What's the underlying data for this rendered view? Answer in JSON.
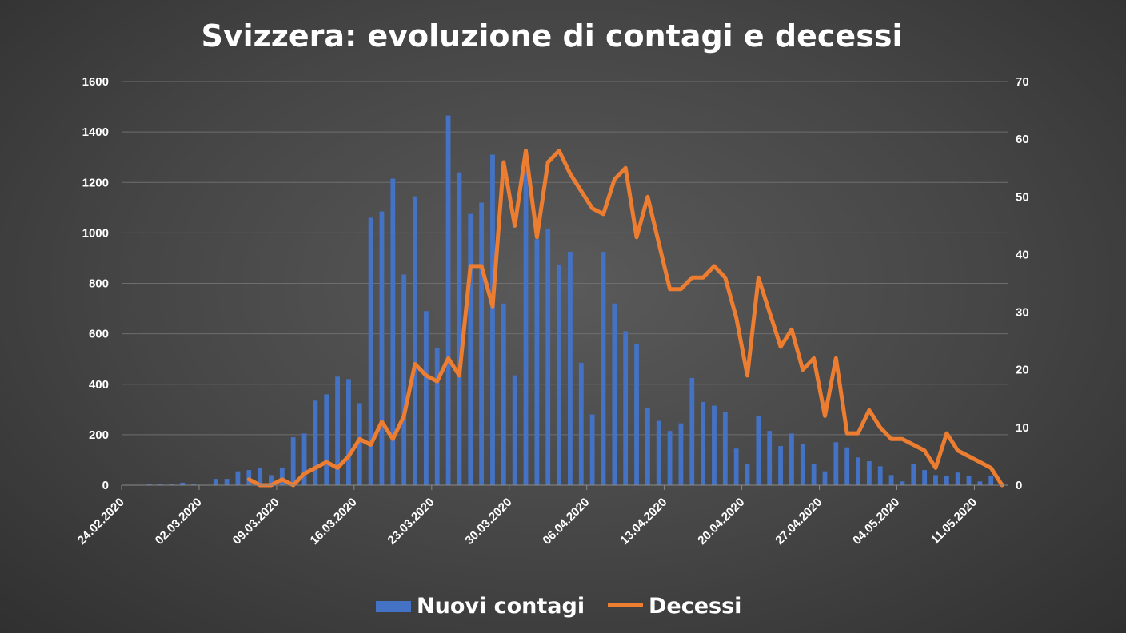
{
  "chart_data": {
    "type": "bar+line",
    "title": "Svizzera: evoluzione di contagi e decessi",
    "categories_start": "24.02.2020",
    "x_tick_labels": [
      "24.02.2020",
      "02.03.2020",
      "09.03.2020",
      "16.03.2020",
      "23.03.2020",
      "30.03.2020",
      "06.04.2020",
      "13.04.2020",
      "20.04.2020",
      "27.04.2020",
      "04.05.2020",
      "11.05.2020"
    ],
    "y_left": {
      "ylim": [
        0,
        1600
      ],
      "ticks": [
        "0",
        "200",
        "400",
        "600",
        "800",
        "1000",
        "1200",
        "1400",
        "1600"
      ]
    },
    "y_right": {
      "ylim": [
        0,
        70
      ],
      "ticks": [
        "0",
        "10",
        "20",
        "30",
        "40",
        "50",
        "60",
        "70"
      ]
    },
    "series": [
      {
        "name": "Nuovi contagi",
        "type": "bar",
        "axis": "left",
        "color": "#4472c4",
        "values": [
          0,
          0,
          5,
          5,
          5,
          10,
          5,
          0,
          25,
          25,
          55,
          60,
          70,
          40,
          70,
          190,
          205,
          335,
          360,
          430,
          420,
          325,
          1060,
          1085,
          1215,
          835,
          1145,
          690,
          545,
          1465,
          1240,
          1075,
          1120,
          1310,
          720,
          435,
          1255,
          975,
          1015,
          875,
          925,
          485,
          280,
          925,
          720,
          610,
          560,
          305,
          255,
          215,
          245,
          425,
          330,
          315,
          290,
          145,
          85,
          275,
          215,
          155,
          205,
          165,
          85,
          55,
          170,
          150,
          110,
          95,
          75,
          40,
          15,
          85,
          60,
          40,
          35,
          50,
          35,
          15,
          35,
          10
        ]
      },
      {
        "name": "Decessi",
        "type": "line",
        "axis": "right",
        "color": "#ed7d31",
        "start_index": 11,
        "values": [
          1,
          0,
          0,
          1,
          0,
          2,
          3,
          4,
          3,
          5,
          8,
          7,
          11,
          8,
          12,
          21,
          19,
          18,
          22,
          19,
          38,
          38,
          31,
          56,
          45,
          58,
          43,
          56,
          58,
          54,
          51,
          48,
          47,
          53,
          55,
          43,
          50,
          42,
          34,
          34,
          36,
          36,
          38,
          36,
          29,
          19,
          36,
          30,
          24,
          27,
          20,
          22,
          12,
          22,
          9,
          9,
          13,
          10,
          8,
          8,
          7,
          6,
          3,
          9,
          6,
          5,
          4,
          3,
          0
        ]
      }
    ],
    "legend": {
      "position": "bottom",
      "items": [
        "Nuovi contagi",
        "Decessi"
      ]
    },
    "grid": true
  }
}
